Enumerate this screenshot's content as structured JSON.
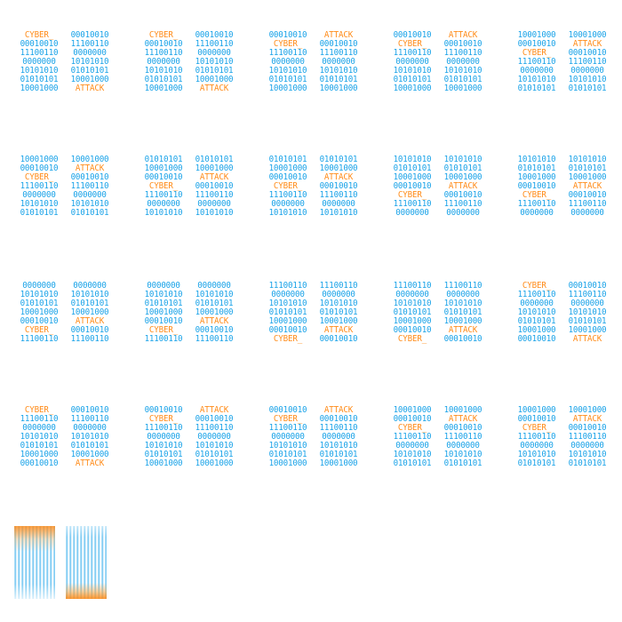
{
  "sprite_sheet": {
    "colors": {
      "binary": "#1aa3e8",
      "accent": "#ff8c1a",
      "background": "#ffffff"
    },
    "frames": [
      {
        "col1": [
          "CYBER_",
          "00010010",
          "11100110",
          "0000000",
          "10101010",
          "01010101",
          "10001000"
        ],
        "col2": [
          "00010010",
          "11100110",
          "0000000",
          "10101010",
          "01010101",
          "10001000",
          "ATTACK"
        ]
      },
      {
        "col1": [
          "CYBER_",
          "00010010",
          "11100110",
          "0000000",
          "10101010",
          "01010101",
          "10001000"
        ],
        "col2": [
          "00010010",
          "11100110",
          "0000000",
          "10101010",
          "01010101",
          "10001000",
          "ATTACK"
        ]
      },
      {
        "col1": [
          "00010010",
          "CYBER_",
          "11100110",
          "0000000",
          "10101010",
          "01010101",
          "10001000"
        ],
        "col2": [
          "ATTACK",
          "00010010",
          "11100110",
          "0000000",
          "10101010",
          "01010101",
          "10001000"
        ]
      },
      {
        "col1": [
          "00010010",
          "CYBER_",
          "11100110",
          "0000000",
          "10101010",
          "01010101",
          "10001000"
        ],
        "col2": [
          "ATTACK",
          "00010010",
          "11100110",
          "0000000",
          "10101010",
          "01010101",
          "10001000"
        ]
      },
      {
        "col1": [
          "10001000",
          "00010010",
          "CYBER_",
          "11100110",
          "0000000",
          "10101010",
          "01010101"
        ],
        "col2": [
          "10001000",
          "ATTACK",
          "00010010",
          "11100110",
          "0000000",
          "10101010",
          "01010101"
        ]
      },
      {
        "col1": [
          "10001000",
          "00010010",
          "CYBER_",
          "11100110",
          "0000000",
          "10101010",
          "01010101"
        ],
        "col2": [
          "10001000",
          "ATTACK",
          "00010010",
          "11100110",
          "0000000",
          "10101010",
          "01010101"
        ]
      },
      {
        "col1": [
          "01010101",
          "10001000",
          "00010010",
          "CYBER_",
          "11100110",
          "0000000",
          "10101010"
        ],
        "col2": [
          "01010101",
          "10001000",
          "ATTACK",
          "00010010",
          "11100110",
          "0000000",
          "10101010"
        ]
      },
      {
        "col1": [
          "01010101",
          "10001000",
          "00010010",
          "CYBER_",
          "11100110",
          "0000000",
          "10101010"
        ],
        "col2": [
          "01010101",
          "10001000",
          "ATTACK",
          "00010010",
          "11100110",
          "0000000",
          "10101010"
        ]
      },
      {
        "col1": [
          "10101010",
          "01010101",
          "10001000",
          "00010010",
          "CYBER_",
          "11100110",
          "0000000"
        ],
        "col2": [
          "10101010",
          "01010101",
          "10001000",
          "ATTACK",
          "00010010",
          "11100110",
          "0000000"
        ]
      },
      {
        "col1": [
          "10101010",
          "01010101",
          "10001000",
          "00010010",
          "CYBER_",
          "11100110",
          "0000000"
        ],
        "col2": [
          "10101010",
          "01010101",
          "10001000",
          "ATTACK",
          "00010010",
          "11100110",
          "0000000"
        ]
      },
      {
        "col1": [
          "0000000",
          "10101010",
          "01010101",
          "10001000",
          "00010010",
          "CYBER_",
          "11100110"
        ],
        "col2": [
          "0000000",
          "10101010",
          "01010101",
          "10001000",
          "ATTACK",
          "00010010",
          "11100110"
        ]
      },
      {
        "col1": [
          "0000000",
          "10101010",
          "01010101",
          "10001000",
          "00010010",
          "CYBER_",
          "11100110"
        ],
        "col2": [
          "0000000",
          "10101010",
          "01010101",
          "10001000",
          "ATTACK",
          "00010010",
          "11100110"
        ]
      },
      {
        "col1": [
          "11100110",
          "0000000",
          "10101010",
          "01010101",
          "10001000",
          "00010010",
          "CYBER_"
        ],
        "col2": [
          "11100110",
          "0000000",
          "10101010",
          "01010101",
          "10001000",
          "ATTACK",
          "00010010"
        ]
      },
      {
        "col1": [
          "11100110",
          "0000000",
          "10101010",
          "01010101",
          "10001000",
          "00010010",
          "CYBER_"
        ],
        "col2": [
          "11100110",
          "0000000",
          "10101010",
          "01010101",
          "10001000",
          "ATTACK",
          "00010010"
        ]
      },
      {
        "col1": [
          "CYBER_",
          "11100110",
          "0000000",
          "10101010",
          "01010101",
          "10001000",
          "00010010"
        ],
        "col2": [
          "00010010",
          "11100110",
          "0000000",
          "10101010",
          "01010101",
          "10001000",
          "ATTACK"
        ]
      },
      {
        "col1": [
          "CYBER_",
          "11100110",
          "0000000",
          "10101010",
          "01010101",
          "10001000",
          "00010010"
        ],
        "col2": [
          "00010010",
          "11100110",
          "0000000",
          "10101010",
          "01010101",
          "10001000",
          "ATTACK"
        ]
      },
      {
        "col1": [
          "00010010",
          "CYBER_",
          "11100110",
          "0000000",
          "10101010",
          "01010101",
          "10001000"
        ],
        "col2": [
          "ATTACK",
          "00010010",
          "11100110",
          "0000000",
          "10101010",
          "01010101",
          "10001000"
        ]
      },
      {
        "col1": [
          "00010010",
          "CYBER_",
          "11100110",
          "0000000",
          "10101010",
          "01010101",
          "10001000"
        ],
        "col2": [
          "ATTACK",
          "00010010",
          "11100110",
          "0000000",
          "10101010",
          "01010101",
          "10001000"
        ]
      },
      {
        "col1": [
          "10001000",
          "00010010",
          "CYBER_",
          "11100110",
          "0000000",
          "10101010",
          "01010101"
        ],
        "col2": [
          "10001000",
          "ATTACK",
          "00010010",
          "11100110",
          "0000000",
          "10101010",
          "01010101"
        ]
      },
      {
        "col1": [
          "10001000",
          "00010010",
          "CYBER_",
          "11100110",
          "0000000",
          "10101010",
          "01010101"
        ],
        "col2": [
          "10001000",
          "ATTACK",
          "00010010",
          "11100110",
          "0000000",
          "10101010",
          "01010101"
        ]
      }
    ],
    "accent_words": [
      "CYBER_",
      "ATTACK"
    ],
    "streams": [
      {
        "name": "data-stream-1"
      },
      {
        "name": "data-stream-2"
      }
    ]
  }
}
